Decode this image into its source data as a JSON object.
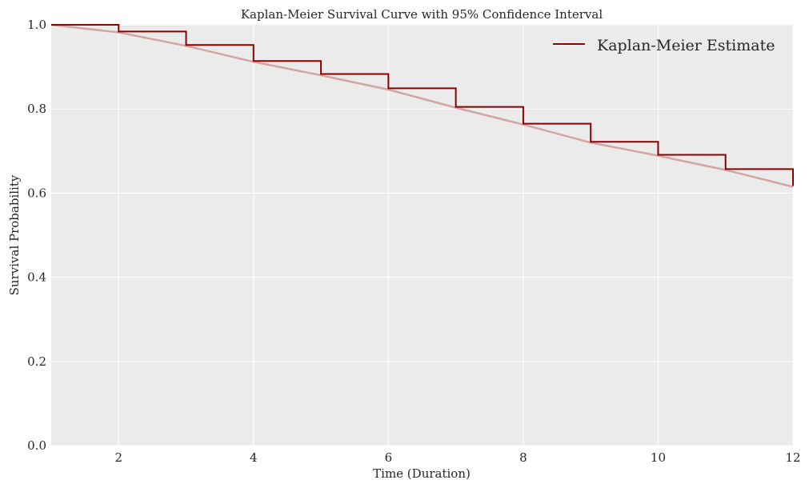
{
  "chart_data": {
    "type": "line",
    "title": "Kaplan-Meier Survival Curve with 95% Confidence Interval",
    "xlabel": "Time (Duration)",
    "ylabel": "Survival Probability",
    "xlim": [
      1,
      12
    ],
    "ylim": [
      0,
      1.0
    ],
    "xticks": [
      "2",
      "4",
      "6",
      "8",
      "10",
      "12"
    ],
    "yticks": [
      "0.0",
      "0.2",
      "0.4",
      "0.6",
      "0.8",
      "1.0"
    ],
    "grid": true,
    "legend_position": "top-right",
    "colors": {
      "background": "#ebebeb",
      "grid": "#ffffff",
      "estimate": "#8b0000",
      "confidence_band": "#d4a5a5"
    },
    "series": [
      {
        "name": "Kaplan-Meier Estimate",
        "step": "post",
        "x": [
          1,
          2,
          3,
          4,
          5,
          6,
          7,
          8,
          9,
          10,
          11,
          12
        ],
        "y": [
          1.0,
          0.984,
          0.952,
          0.914,
          0.883,
          0.849,
          0.805,
          0.765,
          0.722,
          0.691,
          0.657,
          0.617
        ]
      }
    ],
    "confidence_interval": {
      "x": [
        1,
        2,
        3,
        4,
        5,
        6,
        7,
        8,
        9,
        10,
        11,
        12
      ],
      "y": [
        1.0,
        0.982,
        0.95,
        0.912,
        0.88,
        0.846,
        0.803,
        0.763,
        0.72,
        0.689,
        0.655,
        0.615
      ]
    }
  }
}
